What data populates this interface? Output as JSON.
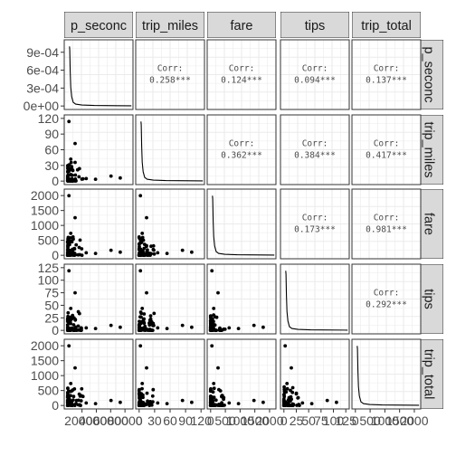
{
  "chart_data": {
    "type": "scatter",
    "title": "",
    "variables": [
      "trip_seconds",
      "trip_miles",
      "fare",
      "tips",
      "trip_total"
    ],
    "strip_labels": [
      "p_seconc",
      "trip_miles",
      "fare",
      "tips",
      "trip_total"
    ],
    "axis_ranges": {
      "trip_seconds": [
        0,
        86400
      ],
      "trip_miles": [
        0,
        120
      ],
      "fare": [
        0,
        2100
      ],
      "tips": [
        0,
        125
      ],
      "trip_total": [
        0,
        2100
      ]
    },
    "density_ylim": [
      0,
      0.00105
    ],
    "y_tick_labels": [
      [
        "0e+00",
        "3e-04",
        "6e-04",
        "9e-04"
      ],
      [
        "0",
        "30",
        "60",
        "90",
        "120"
      ],
      [
        "0",
        "500",
        "1000",
        "1500",
        "2000"
      ],
      [
        "0",
        "25",
        "50",
        "75",
        "100",
        "125"
      ],
      [
        "0",
        "500",
        "1000",
        "1500",
        "2000"
      ]
    ],
    "x_tick_labels": [
      [
        "20000",
        "40000",
        "60000",
        "80000"
      ],
      [
        "0",
        "30",
        "60",
        "90",
        "120"
      ],
      [
        "0",
        "500",
        "1000",
        "1500",
        "2000"
      ],
      [
        "0",
        "25",
        "50",
        "75",
        "100",
        "125"
      ],
      [
        "0",
        "500",
        "1000",
        "1500",
        "2000"
      ]
    ],
    "correlations": [
      {
        "row": 0,
        "col": 1,
        "label": "Corr:",
        "value": "0.258***"
      },
      {
        "row": 0,
        "col": 2,
        "label": "Corr:",
        "value": "0.124***"
      },
      {
        "row": 0,
        "col": 3,
        "label": "Corr:",
        "value": "0.094***"
      },
      {
        "row": 0,
        "col": 4,
        "label": "Corr:",
        "value": "0.137***"
      },
      {
        "row": 1,
        "col": 2,
        "label": "Corr:",
        "value": "0.362***"
      },
      {
        "row": 1,
        "col": 3,
        "label": "Corr:",
        "value": "0.384***"
      },
      {
        "row": 1,
        "col": 4,
        "label": "Corr:",
        "value": "0.417***"
      },
      {
        "row": 2,
        "col": 3,
        "label": "Corr:",
        "value": "0.173***"
      },
      {
        "row": 2,
        "col": 4,
        "label": "Corr:",
        "value": "0.981***"
      },
      {
        "row": 3,
        "col": 4,
        "label": "Corr:",
        "value": "0.292***"
      }
    ],
    "grid": true,
    "legend": "none",
    "colors": {
      "point": "#000000",
      "strip_fill": "#d9d9d9",
      "grid": "#ebebeb",
      "panel_border": "#333333",
      "tick_text": "#4d4d4d"
    }
  }
}
